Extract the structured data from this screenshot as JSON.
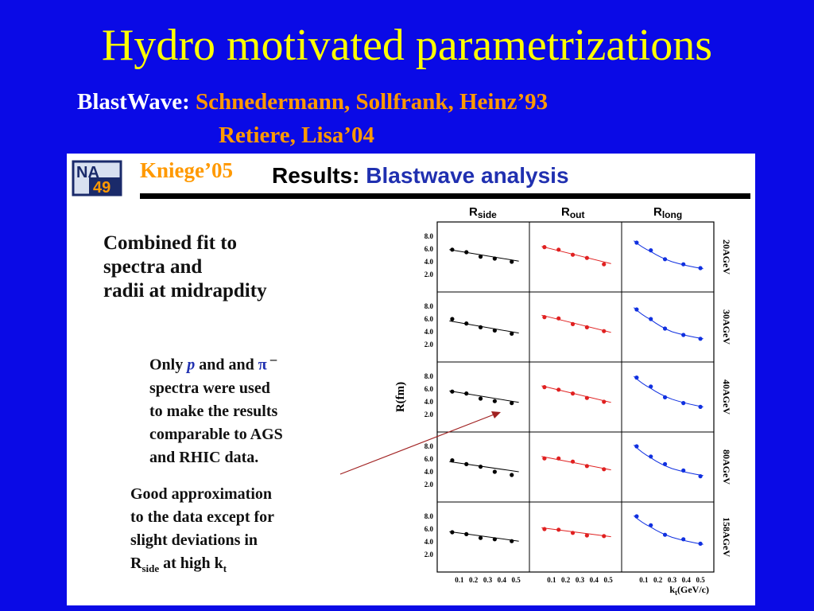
{
  "slide": {
    "title": "Hydro motivated parametrizations",
    "blastwave_label": "BlastWave:",
    "blastwave_ref1": "Schnedermann, Sollfrank, Heinz’93",
    "blastwave_ref2": "Retiere, Lisa’04",
    "colors": {
      "background": "#0a0ae6",
      "title": "#ffff00",
      "reference": "#ff9900"
    }
  },
  "panel": {
    "logo_text_top": "NA",
    "logo_text_bottom": "49",
    "kniege": "Kniege’05",
    "results_label": "Results:",
    "results_title": "Blastwave analysis",
    "text1": [
      "Combined fit to",
      "spectra and",
      "radii at midrapdity"
    ],
    "text2": {
      "line1_a": "Only ",
      "line1_p": "p",
      "line1_b": " and  and ",
      "line1_pi": "π",
      "line1_sup": " –",
      "lines": [
        "spectra  were used",
        "to make the results",
        "comparable to AGS",
        "and RHIC data."
      ]
    },
    "text3": {
      "lines": [
        "Good approximation",
        "to the data except for",
        "slight deviations in"
      ],
      "last_a": "R",
      "last_sub": "side",
      "last_b": " at high k",
      "last_sub2": "t"
    }
  },
  "chart_data": {
    "type": "scatter",
    "columns": [
      {
        "label": "R",
        "sub": "side",
        "color": "#000000"
      },
      {
        "label": "R",
        "sub": "out",
        "color": "#e02020"
      },
      {
        "label": "R",
        "sub": "long",
        "color": "#1030e0"
      }
    ],
    "rows": [
      "20AGeV",
      "30AGeV",
      "40AGeV",
      "80AGeV",
      "158AGeV"
    ],
    "ylabel": "R(fm)",
    "xlabel": "k",
    "xlabel_sub": "t",
    "xlabel_unit": "(GeV/c)",
    "yticks": [
      "8.0",
      "6.0",
      "4.0",
      "2.0"
    ],
    "xticks": [
      "0.1",
      "0.2",
      "0.3",
      "0.4",
      "0.5"
    ],
    "ylim": [
      0,
      9.5
    ],
    "xlim": [
      0,
      0.55
    ],
    "panels": [
      [
        {
          "x": [
            0.05,
            0.15,
            0.25,
            0.35,
            0.47
          ],
          "y": [
            5.9,
            5.5,
            4.8,
            4.5,
            4.0
          ],
          "fit": [
            [
              0.03,
              5.9
            ],
            [
              0.52,
              4.1
            ]
          ]
        },
        {
          "x": [
            0.05,
            0.15,
            0.25,
            0.35,
            0.47
          ],
          "y": [
            6.3,
            5.9,
            5.1,
            4.6,
            3.6
          ],
          "fit": [
            [
              0.03,
              6.4
            ],
            [
              0.52,
              3.7
            ]
          ]
        },
        {
          "x": [
            0.05,
            0.15,
            0.25,
            0.38,
            0.5
          ],
          "y": [
            7.0,
            5.8,
            4.4,
            3.6,
            3.0
          ],
          "fit": [
            [
              0.03,
              7.3
            ],
            [
              0.15,
              5.6
            ],
            [
              0.3,
              4.0
            ],
            [
              0.52,
              2.9
            ]
          ]
        }
      ],
      [
        {
          "x": [
            0.05,
            0.15,
            0.25,
            0.35,
            0.47
          ],
          "y": [
            6.0,
            5.3,
            4.7,
            4.2,
            3.7
          ],
          "fit": [
            [
              0.03,
              5.7
            ],
            [
              0.52,
              3.8
            ]
          ]
        },
        {
          "x": [
            0.05,
            0.15,
            0.25,
            0.35,
            0.47
          ],
          "y": [
            6.3,
            6.1,
            5.2,
            4.7,
            4.1
          ],
          "fit": [
            [
              0.03,
              6.6
            ],
            [
              0.52,
              3.9
            ]
          ]
        },
        {
          "x": [
            0.05,
            0.15,
            0.25,
            0.38,
            0.5
          ],
          "y": [
            7.5,
            6.0,
            4.5,
            3.5,
            2.9
          ],
          "fit": [
            [
              0.03,
              7.8
            ],
            [
              0.15,
              5.9
            ],
            [
              0.3,
              4.0
            ],
            [
              0.52,
              2.9
            ]
          ]
        }
      ],
      [
        {
          "x": [
            0.05,
            0.15,
            0.25,
            0.35,
            0.47
          ],
          "y": [
            5.6,
            5.3,
            4.5,
            4.1,
            3.8
          ],
          "fit": [
            [
              0.03,
              5.7
            ],
            [
              0.52,
              3.9
            ]
          ]
        },
        {
          "x": [
            0.05,
            0.15,
            0.25,
            0.35,
            0.47
          ],
          "y": [
            6.3,
            5.9,
            5.3,
            4.6,
            4.0
          ],
          "fit": [
            [
              0.03,
              6.5
            ],
            [
              0.52,
              3.9
            ]
          ]
        },
        {
          "x": [
            0.05,
            0.15,
            0.25,
            0.38,
            0.5
          ],
          "y": [
            7.8,
            6.4,
            4.7,
            3.8,
            3.2
          ],
          "fit": [
            [
              0.03,
              8.0
            ],
            [
              0.15,
              6.1
            ],
            [
              0.3,
              4.4
            ],
            [
              0.52,
              3.2
            ]
          ]
        }
      ],
      [
        {
          "x": [
            0.05,
            0.15,
            0.25,
            0.35,
            0.47
          ],
          "y": [
            5.8,
            5.2,
            4.8,
            4.0,
            3.5
          ],
          "fit": [
            [
              0.03,
              5.6
            ],
            [
              0.52,
              4.0
            ]
          ]
        },
        {
          "x": [
            0.05,
            0.15,
            0.25,
            0.35,
            0.47
          ],
          "y": [
            6.1,
            6.1,
            5.6,
            4.9,
            4.4
          ],
          "fit": [
            [
              0.03,
              6.4
            ],
            [
              0.52,
              4.3
            ]
          ]
        },
        {
          "x": [
            0.05,
            0.15,
            0.25,
            0.38,
            0.5
          ],
          "y": [
            8.0,
            6.4,
            5.2,
            4.2,
            3.3
          ],
          "fit": [
            [
              0.03,
              8.2
            ],
            [
              0.15,
              6.2
            ],
            [
              0.3,
              4.5
            ],
            [
              0.52,
              3.4
            ]
          ]
        }
      ],
      [
        {
          "x": [
            0.05,
            0.15,
            0.25,
            0.35,
            0.47
          ],
          "y": [
            5.5,
            5.2,
            4.6,
            4.4,
            4.1
          ],
          "fit": [
            [
              0.03,
              5.6
            ],
            [
              0.52,
              4.1
            ]
          ]
        },
        {
          "x": [
            0.05,
            0.15,
            0.25,
            0.35,
            0.47
          ],
          "y": [
            6.0,
            5.9,
            5.4,
            5.0,
            4.9
          ],
          "fit": [
            [
              0.03,
              6.2
            ],
            [
              0.52,
              4.8
            ]
          ]
        },
        {
          "x": [
            0.05,
            0.15,
            0.25,
            0.38,
            0.5
          ],
          "y": [
            8.0,
            6.6,
            5.1,
            4.4,
            3.7
          ],
          "fit": [
            [
              0.03,
              8.1
            ],
            [
              0.15,
              6.3
            ],
            [
              0.3,
              4.7
            ],
            [
              0.52,
              3.6
            ]
          ]
        }
      ]
    ]
  }
}
